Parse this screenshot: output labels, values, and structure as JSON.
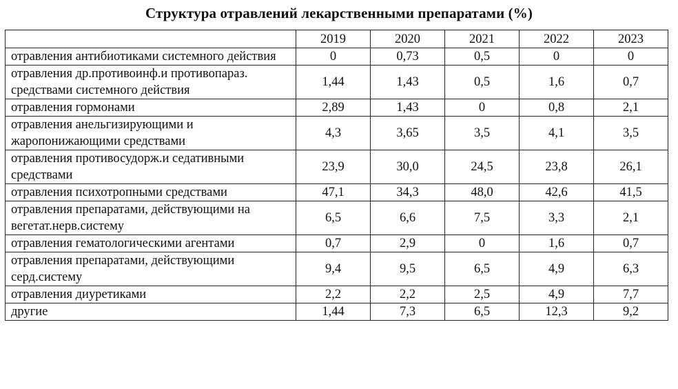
{
  "title": "Структура отравлений лекарственными препаратами (%)",
  "table": {
    "header": {
      "corner": "",
      "years": [
        "2019",
        "2020",
        "2021",
        "2022",
        "2023"
      ]
    },
    "rows": [
      {
        "label": "отравления антибиотиками системного действия",
        "values": [
          "0",
          "0,73",
          "0,5",
          "0",
          "0"
        ]
      },
      {
        "label": "отравления др.противоинф.и противопараз. средствами системного действия",
        "values": [
          "1,44",
          "1,43",
          "0,5",
          "1,6",
          "0,7"
        ]
      },
      {
        "label": "отравления гормонами",
        "values": [
          "2,89",
          "1,43",
          "0",
          "0,8",
          "2,1"
        ]
      },
      {
        "label": "отравления анельгизирующими и жаропонижающими средствами",
        "values": [
          "4,3",
          "3,65",
          "3,5",
          "4,1",
          "3,5"
        ]
      },
      {
        "label": "отравления противосудорж.и седативными средствами",
        "values": [
          "23,9",
          "30,0",
          "24,5",
          "23,8",
          "26,1"
        ]
      },
      {
        "label": "отравления психотропными средствами",
        "values": [
          "47,1",
          "34,3",
          "48,0",
          "42,6",
          "41,5"
        ]
      },
      {
        "label": "отравления препаратами, действующими на вегетат.нерв.систему",
        "values": [
          "6,5",
          "6,6",
          "7,5",
          "3,3",
          "2,1"
        ]
      },
      {
        "label": "отравления гематологическими агентами",
        "values": [
          "0,7",
          "2,9",
          "0",
          "1,6",
          "0,7"
        ]
      },
      {
        "label": "отравления препаратами, действующими серд.систему",
        "values": [
          "9,4",
          "9,5",
          "6,5",
          "4,9",
          "6,3"
        ]
      },
      {
        "label": "отравления диуретиками",
        "values": [
          "2,2",
          "2,2",
          "2,5",
          "4,9",
          "7,7"
        ]
      },
      {
        "label": "другие",
        "values": [
          "1,44",
          "7,3",
          "6,5",
          "12,3",
          "9,2"
        ]
      }
    ]
  }
}
